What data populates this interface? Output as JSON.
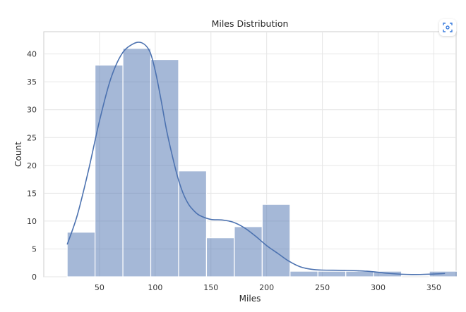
{
  "chart_data": {
    "type": "histogram",
    "title": "Miles Distribution",
    "xlabel": "Miles",
    "ylabel": "Count",
    "xlim": [
      0,
      370
    ],
    "ylim": [
      0,
      44
    ],
    "xticks": [
      50,
      100,
      150,
      200,
      250,
      300,
      350
    ],
    "yticks": [
      0,
      5,
      10,
      15,
      20,
      25,
      30,
      35,
      40
    ],
    "grid": true,
    "legend": "none",
    "bar_color": "#4c72b0",
    "kde_color": "#4c72b0",
    "bins": [
      {
        "x0": 21,
        "x1": 46,
        "count": 8
      },
      {
        "x0": 46,
        "x1": 71,
        "count": 38
      },
      {
        "x0": 71,
        "x1": 96,
        "count": 41
      },
      {
        "x0": 96,
        "x1": 121,
        "count": 39
      },
      {
        "x0": 121,
        "x1": 146,
        "count": 19
      },
      {
        "x0": 146,
        "x1": 171,
        "count": 7
      },
      {
        "x0": 171,
        "x1": 196,
        "count": 9
      },
      {
        "x0": 196,
        "x1": 221,
        "count": 13
      },
      {
        "x0": 221,
        "x1": 246,
        "count": 1
      },
      {
        "x0": 246,
        "x1": 271,
        "count": 1
      },
      {
        "x0": 271,
        "x1": 296,
        "count": 1
      },
      {
        "x0": 296,
        "x1": 321,
        "count": 1
      },
      {
        "x0": 321,
        "x1": 346,
        "count": 0
      },
      {
        "x0": 346,
        "x1": 371,
        "count": 1
      }
    ],
    "kde": {
      "x": [
        21,
        30,
        40,
        50,
        60,
        70,
        80,
        88,
        95,
        100,
        105,
        110,
        115,
        120,
        125,
        130,
        135,
        140,
        150,
        160,
        170,
        180,
        190,
        200,
        210,
        220,
        230,
        240,
        250,
        270,
        290,
        310,
        330,
        350,
        360
      ],
      "y": [
        5.8,
        11,
        19,
        28,
        35.5,
        40,
        41.8,
        42,
        40.5,
        37,
        32,
        26.5,
        22,
        18,
        15,
        13,
        11.8,
        11,
        10.3,
        10.2,
        9.8,
        8.8,
        7.3,
        5.6,
        4.2,
        2.8,
        1.8,
        1.35,
        1.2,
        1.15,
        1.0,
        0.6,
        0.4,
        0.5,
        0.6
      ]
    }
  },
  "toolbar": {
    "scan_icon": "scan-icon"
  }
}
